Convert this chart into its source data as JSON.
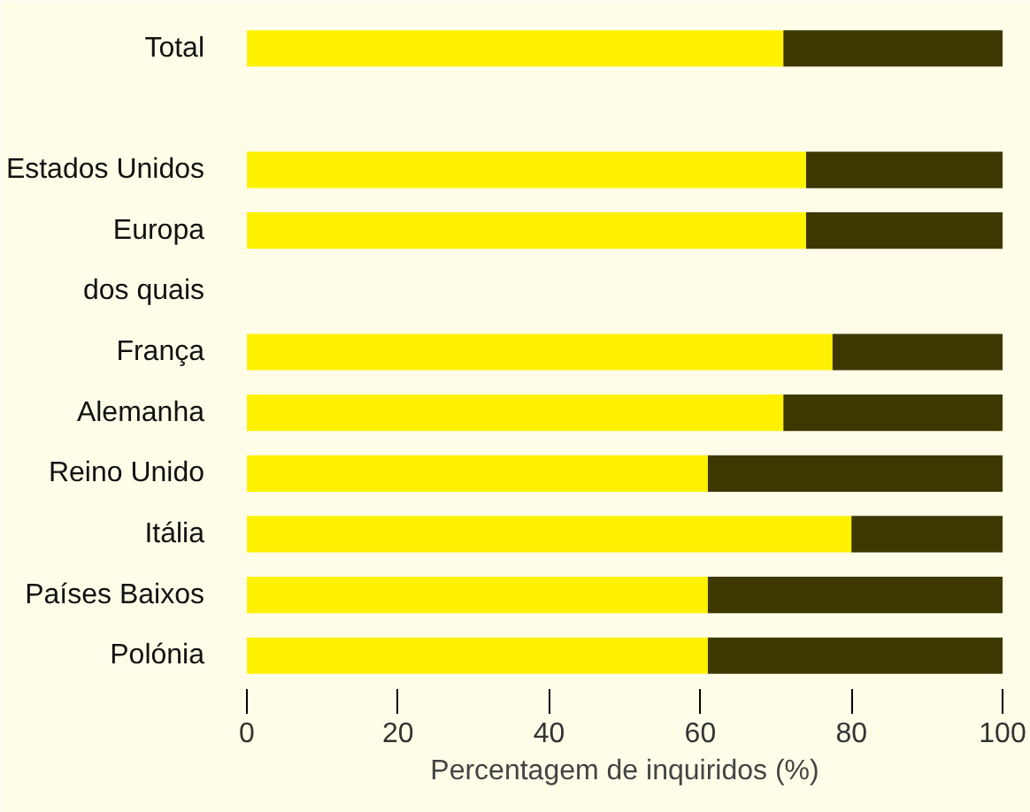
{
  "chart_data": {
    "type": "bar",
    "orientation": "horizontal",
    "stacked": true,
    "xlabel": "Percentagem de inquiridos (%)",
    "categories": [
      "Total",
      null,
      "Estados Unidos",
      "Europa",
      "dos quais",
      "França",
      "Alemanha",
      "Reino Unido",
      "Itália",
      "Países Baixos",
      "Polónia"
    ],
    "series": [
      {
        "color": "#fff200",
        "values": [
          71,
          null,
          74,
          74,
          null,
          77.5,
          71,
          61,
          80,
          61,
          61
        ]
      },
      {
        "color": "#3d3800",
        "values": [
          29,
          null,
          26,
          26,
          null,
          22.5,
          29,
          39,
          20,
          39,
          39
        ]
      }
    ],
    "xlim": [
      0,
      100
    ],
    "xticks": [
      0,
      20,
      40,
      60,
      80,
      100
    ],
    "grid": false
  }
}
